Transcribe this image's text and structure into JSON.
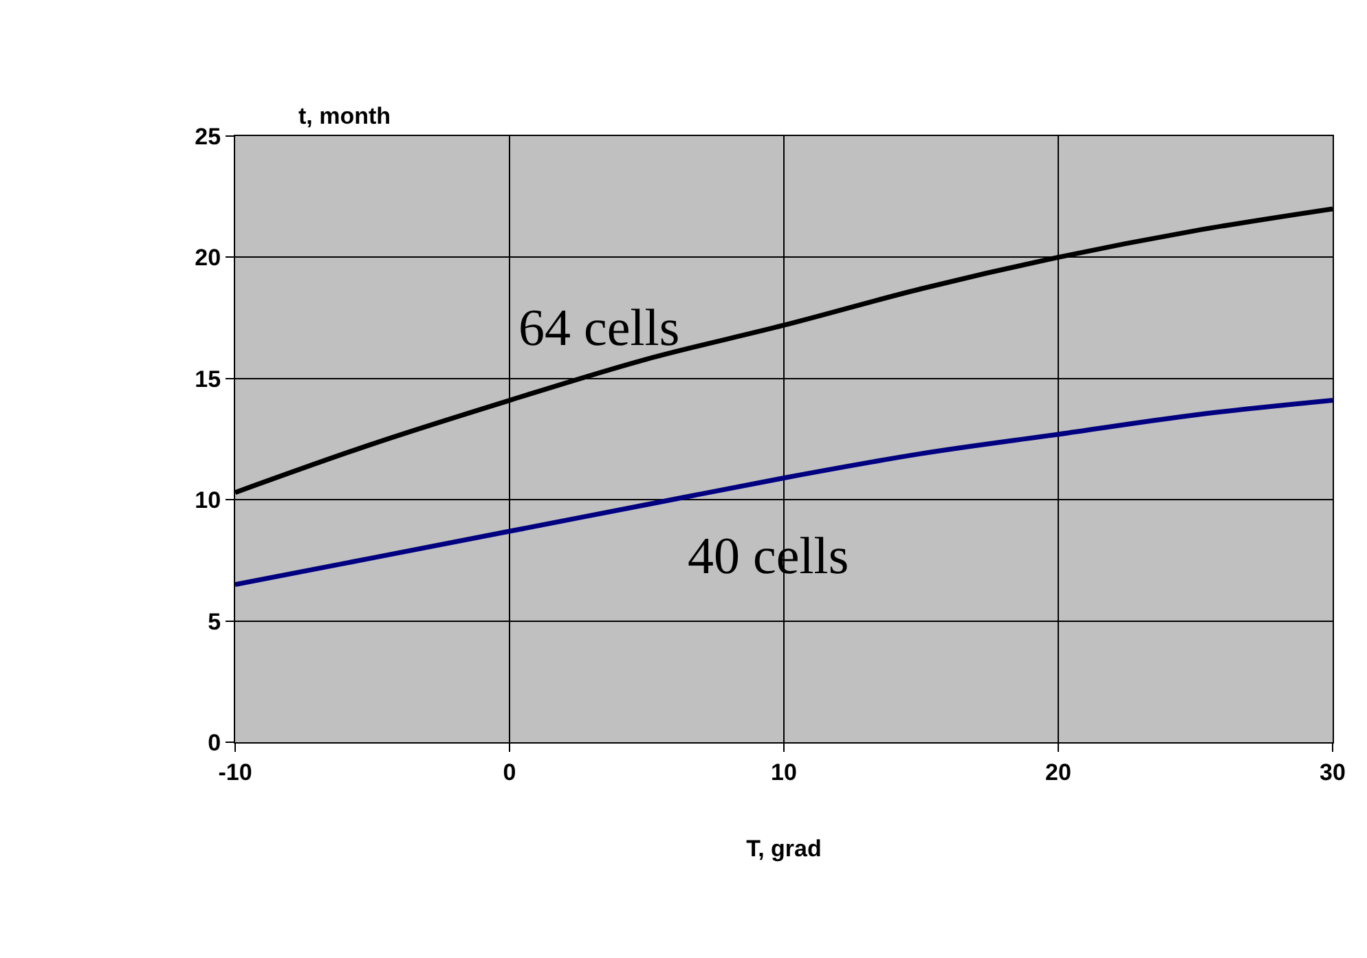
{
  "chart_data": {
    "type": "line",
    "xlabel": "T, grad",
    "ylabel": "t, month",
    "x": [
      -10,
      -5,
      0,
      5,
      10,
      15,
      20,
      25,
      30
    ],
    "series": [
      {
        "name": "64 cells",
        "color": "#000000",
        "values": [
          10.3,
          12.3,
          14.1,
          15.8,
          17.2,
          18.7,
          20.0,
          21.1,
          22.0
        ]
      },
      {
        "name": "40 cells",
        "color": "#000080",
        "values": [
          6.5,
          7.6,
          8.7,
          9.8,
          10.9,
          11.9,
          12.7,
          13.5,
          14.1
        ]
      }
    ],
    "xlim": [
      -10,
      30
    ],
    "xticks": [
      -10,
      0,
      10,
      20,
      30
    ],
    "ylim": [
      0,
      25
    ],
    "yticks": [
      0,
      5,
      10,
      15,
      20,
      25
    ],
    "grid": true,
    "legend": false,
    "marker": "none",
    "line_style": "solid"
  }
}
